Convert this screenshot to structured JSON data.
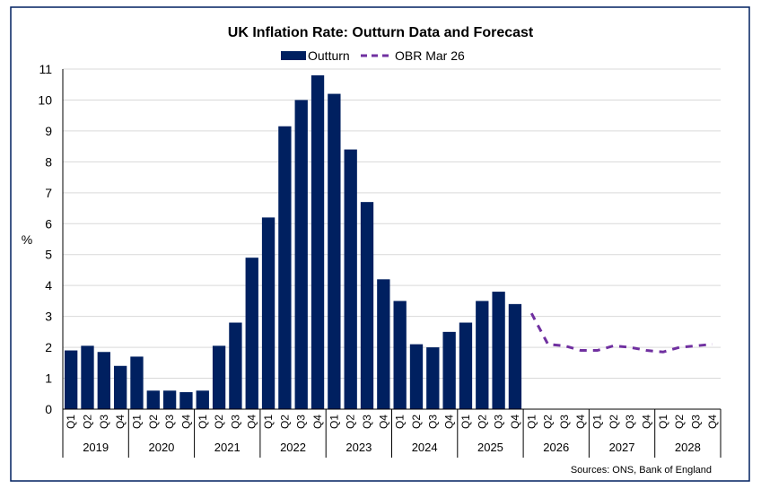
{
  "chart_data": {
    "type": "bar",
    "title": "UK Inflation Rate: Outturn Data and Forecast",
    "ylabel": "%",
    "ylim": [
      0,
      11
    ],
    "yticks": [
      0,
      1,
      2,
      3,
      4,
      5,
      6,
      7,
      8,
      9,
      10,
      11
    ],
    "grid": true,
    "legend_placement": "top",
    "years": [
      "2019",
      "2020",
      "2021",
      "2022",
      "2023",
      "2024",
      "2025",
      "2026",
      "2027",
      "2028"
    ],
    "quarters": [
      "Q1",
      "Q2",
      "Q3",
      "Q4"
    ],
    "series": [
      {
        "name": "Outturn",
        "kind": "bar",
        "color": "#002060",
        "values": [
          1.9,
          2.05,
          1.85,
          1.4,
          1.7,
          0.6,
          0.6,
          0.55,
          0.6,
          2.05,
          2.8,
          4.9,
          6.2,
          9.15,
          10.0,
          10.8,
          10.2,
          8.4,
          6.7,
          4.2,
          3.5,
          2.1,
          2.0,
          2.5,
          2.8,
          3.5,
          3.8,
          3.4
        ]
      },
      {
        "name": "OBR Mar 26",
        "kind": "dashed-line",
        "color": "#7030A0",
        "start_index": 28,
        "values": [
          3.1,
          2.1,
          2.05,
          1.9,
          1.9,
          2.05,
          2.0,
          1.9,
          1.85,
          2.0,
          2.05,
          2.1
        ]
      }
    ],
    "source": "Sources: ONS, Bank of England"
  }
}
